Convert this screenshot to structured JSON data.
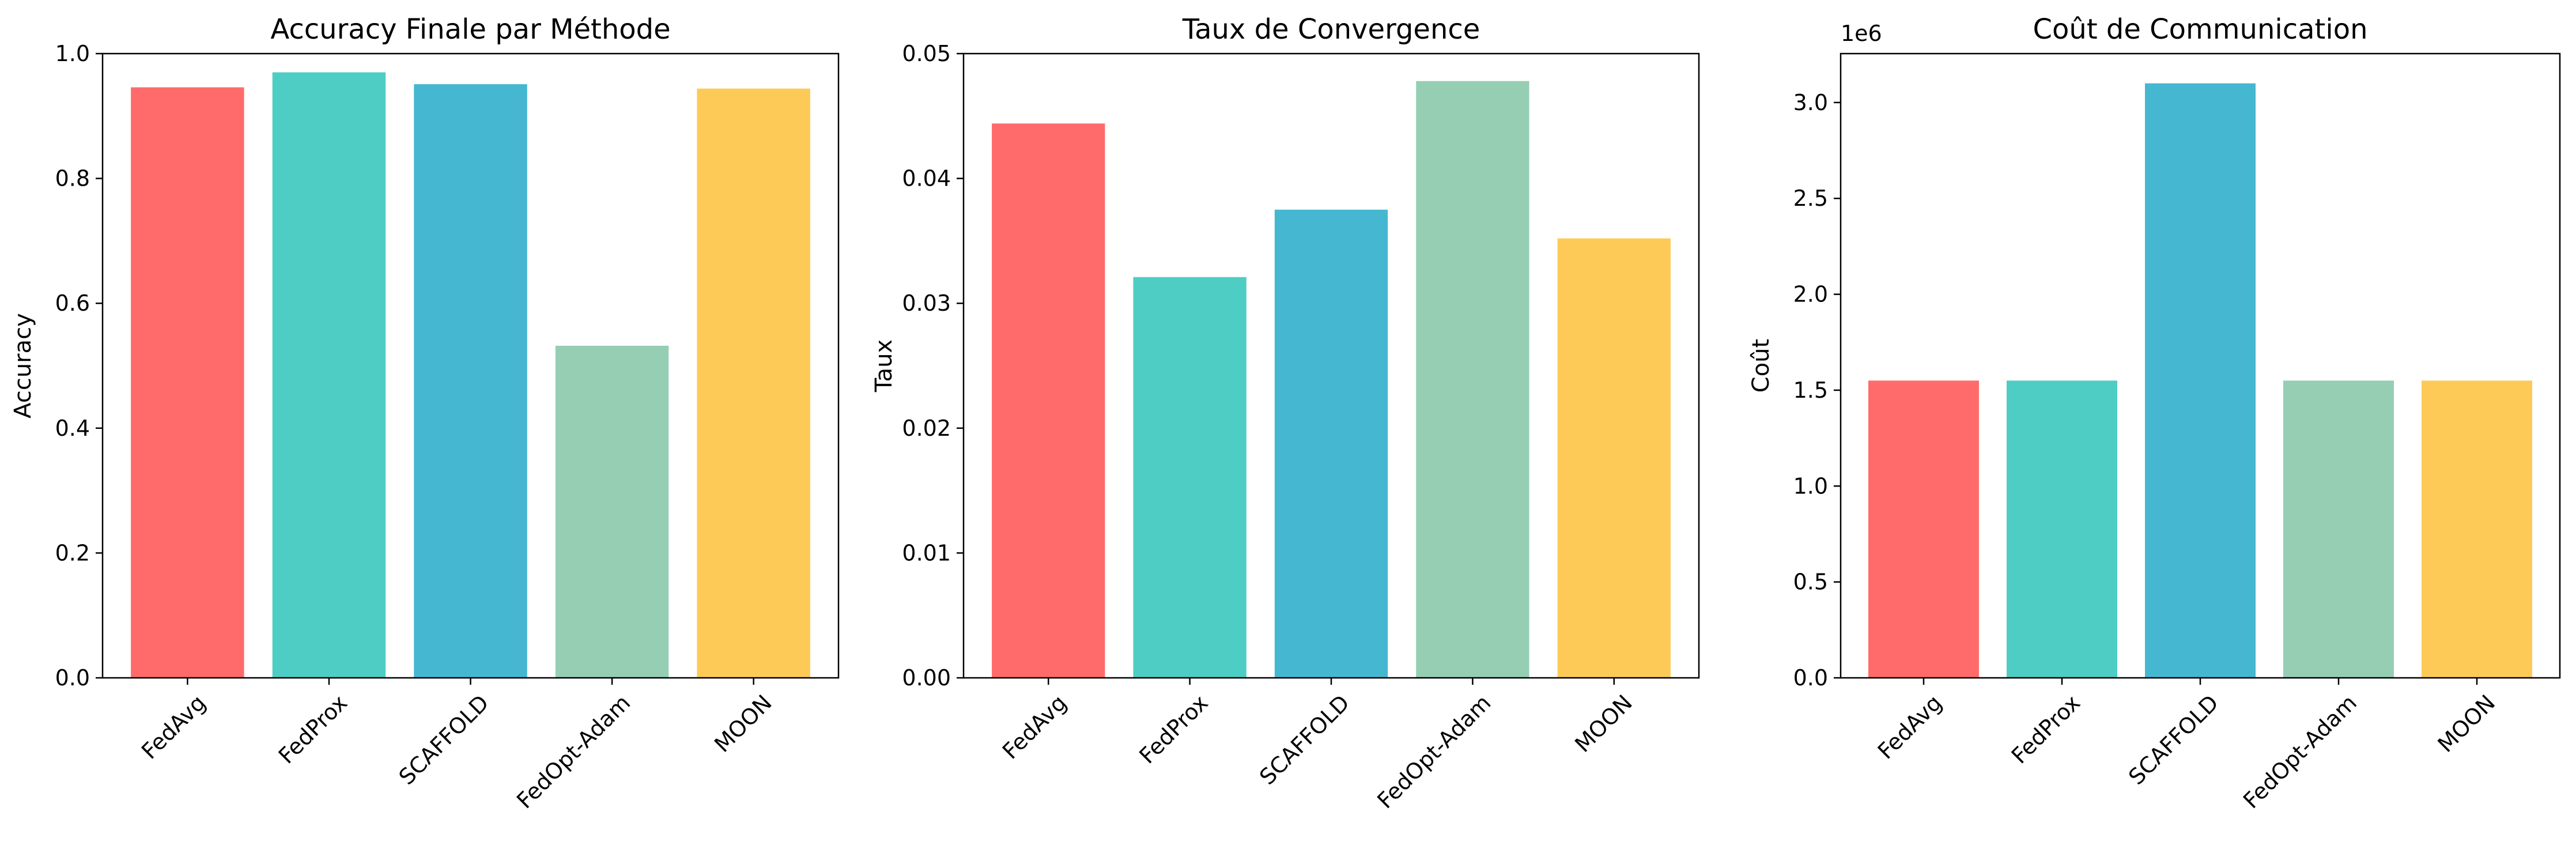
{
  "chart_data": [
    {
      "type": "bar",
      "title": "Accuracy Finale par Méthode",
      "xlabel": "",
      "ylabel": "Accuracy",
      "categories": [
        "FedAvg",
        "FedProx",
        "SCAFFOLD",
        "FedOpt-Adam",
        "MOON"
      ],
      "values": [
        0.946,
        0.97,
        0.951,
        0.532,
        0.944
      ],
      "colors": [
        "#FF6B6B",
        "#4ECDC4",
        "#45B7D1",
        "#96CEB4",
        "#FECA57"
      ],
      "ylim": [
        0,
        1.0
      ],
      "yticks": [
        0.0,
        0.2,
        0.4,
        0.6,
        0.8,
        1.0
      ],
      "ytick_labels": [
        "0.0",
        "0.2",
        "0.4",
        "0.6",
        "0.8",
        "1.0"
      ],
      "offset_text": "",
      "grid": false
    },
    {
      "type": "bar",
      "title": "Taux de Convergence",
      "xlabel": "",
      "ylabel": "Taux",
      "categories": [
        "FedAvg",
        "FedProx",
        "SCAFFOLD",
        "FedOpt-Adam",
        "MOON"
      ],
      "values": [
        0.0444,
        0.0321,
        0.0375,
        0.0478,
        0.0352
      ],
      "colors": [
        "#FF6B6B",
        "#4ECDC4",
        "#45B7D1",
        "#96CEB4",
        "#FECA57"
      ],
      "ylim": [
        0,
        0.05
      ],
      "yticks": [
        0.0,
        0.01,
        0.02,
        0.03,
        0.04,
        0.05
      ],
      "ytick_labels": [
        "0.00",
        "0.01",
        "0.02",
        "0.03",
        "0.04",
        "0.05"
      ],
      "offset_text": "",
      "grid": false
    },
    {
      "type": "bar",
      "title": "Coût de Communication",
      "xlabel": "",
      "ylabel": "Coût",
      "categories": [
        "FedAvg",
        "FedProx",
        "SCAFFOLD",
        "FedOpt-Adam",
        "MOON"
      ],
      "values": [
        1550000,
        1550000,
        3100000,
        1550000,
        1550000
      ],
      "colors": [
        "#FF6B6B",
        "#4ECDC4",
        "#45B7D1",
        "#96CEB4",
        "#FECA57"
      ],
      "ylim": [
        0,
        3255000
      ],
      "yticks": [
        0,
        500000,
        1000000,
        1500000,
        2000000,
        2500000,
        3000000
      ],
      "ytick_labels": [
        "0.0",
        "0.5",
        "1.0",
        "1.5",
        "2.0",
        "2.5",
        "3.0"
      ],
      "offset_text": "1e6",
      "grid": false
    }
  ]
}
